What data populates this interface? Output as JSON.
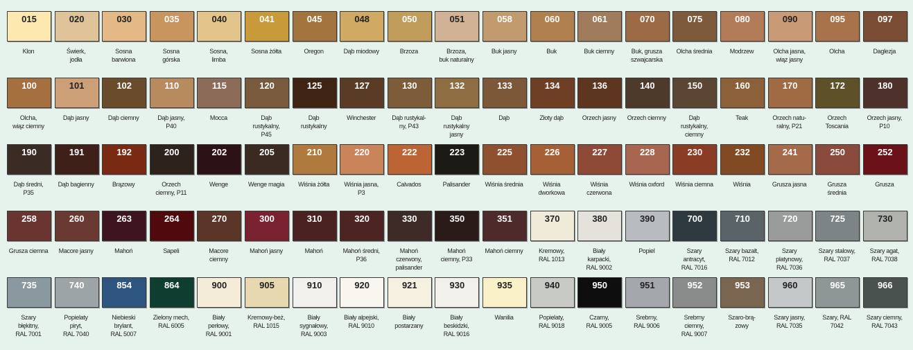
{
  "rows": [
    [
      {
        "code": "015",
        "name": "Klon",
        "color": "#fde8b0"
      },
      {
        "code": "020",
        "name": "Świerk,\njodła",
        "color": "#dfc49a"
      },
      {
        "code": "030",
        "name": "Sosna\nbarwiona",
        "color": "#e4b985"
      },
      {
        "code": "035",
        "name": "Sosna\ngórska",
        "color": "#c9955f"
      },
      {
        "code": "040",
        "name": "Sosna,\nlimba",
        "color": "#e3c48a"
      },
      {
        "code": "041",
        "name": "Sosna żółta",
        "color": "#c99a3a"
      },
      {
        "code": "045",
        "name": "Oregon",
        "color": "#a4743f"
      },
      {
        "code": "048",
        "name": "Dąb miodowy",
        "color": "#d0aa62"
      },
      {
        "code": "050",
        "name": "Brzoza",
        "color": "#c09d5a"
      },
      {
        "code": "051",
        "name": "Brzoza,\nbuk naturalny",
        "color": "#d2b294"
      },
      {
        "code": "058",
        "name": "Buk jasny",
        "color": "#c19a6d"
      },
      {
        "code": "060",
        "name": "Buk",
        "color": "#b0804f"
      },
      {
        "code": "061",
        "name": "Buk ciemny",
        "color": "#a07b5c"
      },
      {
        "code": "070",
        "name": "Buk, grusza\nszwajcarska",
        "color": "#9c6a44"
      },
      {
        "code": "075",
        "name": "Olcha średnia",
        "color": "#7e5a3c"
      },
      {
        "code": "080",
        "name": "Modrzew",
        "color": "#b27c59"
      },
      {
        "code": "090",
        "name": "Olcha jasna,\nwiąz jasny",
        "color": "#c99a76"
      },
      {
        "code": "095",
        "name": "Olcha",
        "color": "#a8734a"
      },
      {
        "code": "097",
        "name": "Daglezja",
        "color": "#7a4c33"
      }
    ],
    [
      {
        "code": "100",
        "name": "Olcha,\nwiąz ciemny",
        "color": "#a56f3f"
      },
      {
        "code": "101",
        "name": "Dąb jasny",
        "color": "#cc9f76"
      },
      {
        "code": "102",
        "name": "Dąb ciemny",
        "color": "#6a4c2c"
      },
      {
        "code": "110",
        "name": "Dąb jasny,\nP40",
        "color": "#b88b5e"
      },
      {
        "code": "115",
        "name": "Mocca",
        "color": "#8c6b58"
      },
      {
        "code": "120",
        "name": "Dąb\nrustykalny,\nP45",
        "color": "#7a5a3c"
      },
      {
        "code": "125",
        "name": "Dąb\nrustykalny",
        "color": "#3f2414"
      },
      {
        "code": "127",
        "name": "Winchester",
        "color": "#5a3c26"
      },
      {
        "code": "130",
        "name": "Dąb rustykal-\nny, P43",
        "color": "#7d5c3a"
      },
      {
        "code": "132",
        "name": "Dąb\nrustykalny\njasny",
        "color": "#8e6d42"
      },
      {
        "code": "133",
        "name": "Dąb",
        "color": "#7c5838"
      },
      {
        "code": "134",
        "name": "Złoty dąb",
        "color": "#6e3f25"
      },
      {
        "code": "136",
        "name": "Orzech jasny",
        "color": "#5e3620"
      },
      {
        "code": "140",
        "name": "Orzech ciemny",
        "color": "#4e3a2a"
      },
      {
        "code": "150",
        "name": "Dąb\nrustykalny,\nciemny",
        "color": "#5a4632"
      },
      {
        "code": "160",
        "name": "Teak",
        "color": "#8c6038"
      },
      {
        "code": "170",
        "name": "Orzech natu-\nralny, P21",
        "color": "#a06a42"
      },
      {
        "code": "172",
        "name": "Orzech\nToscania",
        "color": "#5e5128"
      },
      {
        "code": "180",
        "name": "Orzech jasny,\nP10",
        "color": "#4e312a"
      }
    ],
    [
      {
        "code": "190",
        "name": "Dąb średni,\nP35",
        "color": "#3a2b25"
      },
      {
        "code": "191",
        "name": "Dąb bagienny",
        "color": "#3e2018"
      },
      {
        "code": "192",
        "name": "Brązowy",
        "color": "#7a2a12"
      },
      {
        "code": "200",
        "name": "Orzech\nciemny, P11",
        "color": "#2e221c"
      },
      {
        "code": "202",
        "name": "Wenge",
        "color": "#2c1216"
      },
      {
        "code": "205",
        "name": "Wenge magia",
        "color": "#3a2a22"
      },
      {
        "code": "210",
        "name": "Wiśnia żółta",
        "color": "#b07a3e"
      },
      {
        "code": "220",
        "name": "Wiśnia jasna,\nP3",
        "color": "#c9845a"
      },
      {
        "code": "222",
        "name": "Calvados",
        "color": "#bc6434"
      },
      {
        "code": "223",
        "name": "Palisander",
        "color": "#1c1a14"
      },
      {
        "code": "225",
        "name": "Wiśnia średnia",
        "color": "#8f5030"
      },
      {
        "code": "226",
        "name": "Wiśnia\ndworkowa",
        "color": "#a56035"
      },
      {
        "code": "227",
        "name": "Wiśnia\nczerwona",
        "color": "#8e4a36"
      },
      {
        "code": "228",
        "name": "Wiśnia oxford",
        "color": "#a86650"
      },
      {
        "code": "230",
        "name": "Wiśnia ciemna",
        "color": "#8a3c24"
      },
      {
        "code": "232",
        "name": "Wiśnia",
        "color": "#824a22"
      },
      {
        "code": "241",
        "name": "Grusza jasna",
        "color": "#a56a4a"
      },
      {
        "code": "250",
        "name": "Grusza\nśrednia",
        "color": "#8a4a3c"
      },
      {
        "code": "252",
        "name": "Grusza",
        "color": "#6a1218"
      }
    ],
    [
      {
        "code": "258",
        "name": "Grusza ciemna",
        "color": "#6a3430"
      },
      {
        "code": "260",
        "name": "Macore jasny",
        "color": "#6a3a32"
      },
      {
        "code": "263",
        "name": "Mahoń",
        "color": "#3e1420"
      },
      {
        "code": "264",
        "name": "Sapeli",
        "color": "#500a0e"
      },
      {
        "code": "270",
        "name": "Macore\nciemny",
        "color": "#5a3528"
      },
      {
        "code": "300",
        "name": "Mahoń jasny",
        "color": "#7a2230"
      },
      {
        "code": "310",
        "name": "Mahoń",
        "color": "#4a2222"
      },
      {
        "code": "320",
        "name": "Mahoń średni,\nP36",
        "color": "#4c2422"
      },
      {
        "code": "330",
        "name": "Mahoń\nczerwony,\npalisander",
        "color": "#3e2a26"
      },
      {
        "code": "350",
        "name": "Mahoń\nciemny, P33",
        "color": "#2a1a18"
      },
      {
        "code": "351",
        "name": "Mahoń ciemny",
        "color": "#4e2a2a"
      },
      {
        "code": "370",
        "name": "Kremowy,\nRAL 1013",
        "color": "#f0ead8"
      },
      {
        "code": "380",
        "name": "Biały\nkarpacki,\nRAL 9002",
        "color": "#e4e2da"
      },
      {
        "code": "390",
        "name": "Popiel",
        "color": "#b8bcc0"
      },
      {
        "code": "700",
        "name": "Szary\nantracyt,\nRAL 7016",
        "color": "#2e3a40"
      },
      {
        "code": "710",
        "name": "Szary bazalt,\nRAL 7012",
        "color": "#5a6468"
      },
      {
        "code": "720",
        "name": "Szary\nplatynowy,\nRAL 7036",
        "color": "#9a9c9c"
      },
      {
        "code": "725",
        "name": "Szary stalowy,\nRAL 7037",
        "color": "#7c8486"
      },
      {
        "code": "730",
        "name": "Szary agat,\nRAL 7038",
        "color": "#b0b2ae"
      }
    ],
    [
      {
        "code": "735",
        "name": "Szary\nbłękitny,\nRAL 7001",
        "color": "#8a99a0"
      },
      {
        "code": "740",
        "name": "Popielaty\npiryt,\nRAL 7040",
        "color": "#9ca4a8"
      },
      {
        "code": "854",
        "name": "Niebieski\nbrylant,\nRAL 5007",
        "color": "#2e5480"
      },
      {
        "code": "864",
        "name": "Zielony mech,\nRAL 6005",
        "color": "#0e3e30"
      },
      {
        "code": "900",
        "name": "Biały\nperłowy,\nRAL 9001",
        "color": "#f4ecd8"
      },
      {
        "code": "905",
        "name": "Kremowy-beż,\nRAL 1015",
        "color": "#e8d8b0"
      },
      {
        "code": "910",
        "name": "Biały\nsygnałowy,\nRAL 9003",
        "color": "#f2f0ec"
      },
      {
        "code": "920",
        "name": "Biały alpejski,\nRAL 9010",
        "color": "#f8f6ee"
      },
      {
        "code": "921",
        "name": "Biały\npostarzany",
        "color": "#f6f0e0"
      },
      {
        "code": "930",
        "name": "Biały\nbeskidzki,\nRAL 9016",
        "color": "#f2f0ea"
      },
      {
        "code": "935",
        "name": "Wanilia",
        "color": "#fbf1c8"
      },
      {
        "code": "940",
        "name": "Popielaty,\nRAL 9018",
        "color": "#c8cac6"
      },
      {
        "code": "950",
        "name": "Czarny,\nRAL 9005",
        "color": "#0e0e0e"
      },
      {
        "code": "951",
        "name": "Srebrny,\nRAL 9006",
        "color": "#a4a8ac"
      },
      {
        "code": "952",
        "name": "Srebrny\nciemny,\nRAL 9007",
        "color": "#8a8c8c"
      },
      {
        "code": "953",
        "name": "Szaro-brą-\nzowy",
        "color": "#7a6650"
      },
      {
        "code": "960",
        "name": "Szary jasny,\nRAL 7035",
        "color": "#c4c8c8"
      },
      {
        "code": "965",
        "name": "Szary, RAL\n7042",
        "color": "#8e9696"
      },
      {
        "code": "966",
        "name": "Szary ciemny,\nRAL 7043",
        "color": "#4a5250"
      }
    ]
  ]
}
